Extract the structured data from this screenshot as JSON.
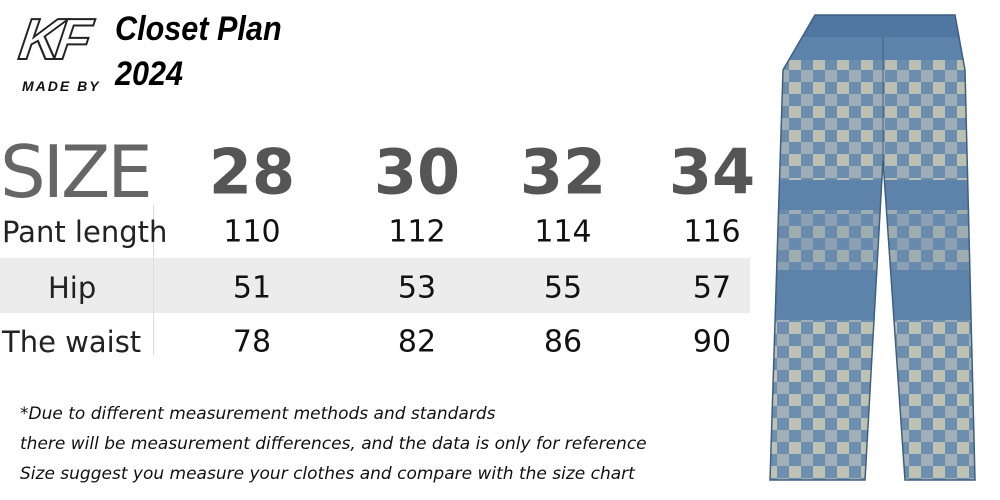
{
  "logo": {
    "mark": "KF",
    "caption": "MADE BY"
  },
  "header": {
    "title": "Closet Plan",
    "year": "2024"
  },
  "table": {
    "header": [
      "SIZE",
      28,
      30,
      32,
      34
    ],
    "rows": [
      [
        "Pant length",
        110,
        112,
        114,
        116
      ],
      [
        "Hip",
        51,
        53,
        55,
        57
      ],
      [
        "The waist",
        78,
        82,
        86,
        90
      ]
    ]
  },
  "notes": [
    "*Due to different measurement methods and standards",
    "there will be measurement differences, and the data is only for reference",
    "Size suggest you measure your clothes and compare with the size chart"
  ]
}
